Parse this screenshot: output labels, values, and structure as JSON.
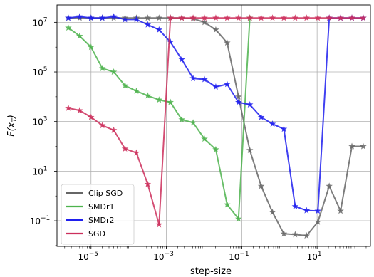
{
  "chart_data": {
    "type": "line",
    "xlabel": "step-size",
    "ylabel": "F(x_T)",
    "x_scale": "log",
    "y_scale": "log",
    "xlim": [
      1.25e-06,
      260
    ],
    "ylim": [
      0.0093,
      50000000
    ],
    "grid": true,
    "legend_position": "lower-left",
    "x_ticks": [
      {
        "value": 1e-05,
        "mantissa": "10",
        "exp": "−5"
      },
      {
        "value": 0.001,
        "mantissa": "10",
        "exp": "−3"
      },
      {
        "value": 0.1,
        "mantissa": "10",
        "exp": "−1"
      },
      {
        "value": 10,
        "mantissa": "10",
        "exp": "1"
      }
    ],
    "y_ticks": [
      {
        "value": 0.1,
        "mantissa": "10",
        "exp": "−1"
      },
      {
        "value": 10,
        "mantissa": "10",
        "exp": "1"
      },
      {
        "value": 1000,
        "mantissa": "10",
        "exp": "3"
      },
      {
        "value": 100000,
        "mantissa": "10",
        "exp": "5"
      },
      {
        "value": 10000000,
        "mantissa": "10",
        "exp": "7"
      }
    ],
    "series": [
      {
        "name": "Clip SGD",
        "color": "#666666",
        "marker": "star",
        "x": [
          2.5e-06,
          5e-06,
          1e-05,
          2e-05,
          4e-05,
          8e-05,
          0.00016,
          0.00032,
          0.00064,
          0.00128,
          0.00256,
          0.00512,
          0.01024,
          0.02048,
          0.04096,
          0.08192,
          0.16384,
          0.32768,
          0.65536,
          1.31,
          2.62,
          5.24,
          10.49,
          20.97,
          41.94,
          83.89,
          167.77
        ],
        "y": [
          15000000,
          15000000,
          15000000,
          15000000,
          15000000,
          15000000,
          15000000,
          15000000,
          15000000,
          15000000,
          15000000,
          14000000,
          10000000,
          5000000,
          1500000,
          10000,
          70,
          2.5,
          0.22,
          0.03,
          0.028,
          0.025,
          0.09,
          2.5,
          0.25,
          100,
          100
        ]
      },
      {
        "name": "SMDr1",
        "color": "#4db34d",
        "marker": "star",
        "x": [
          2.5e-06,
          5e-06,
          1e-05,
          2e-05,
          4e-05,
          8e-05,
          0.00016,
          0.00032,
          0.00064,
          0.00128,
          0.00256,
          0.00512,
          0.01024,
          0.02048,
          0.04096,
          0.08192,
          0.16384
        ],
        "y": [
          6000000,
          2800000,
          1000000,
          140000,
          100000,
          28000,
          17000,
          11000,
          7500,
          6000,
          1200,
          900,
          200,
          75,
          0.45,
          0.12,
          15000000
        ]
      },
      {
        "name": "SMDr2",
        "color": "#1f1fee",
        "marker": "star",
        "x": [
          2.5e-06,
          5e-06,
          1e-05,
          2e-05,
          4e-05,
          8e-05,
          0.00016,
          0.00032,
          0.00064,
          0.00128,
          0.00256,
          0.00512,
          0.01024,
          0.02048,
          0.04096,
          0.08192,
          0.16384,
          0.32768,
          0.65536,
          1.31,
          2.62,
          5.24,
          10.49,
          20.97,
          41.94,
          83.89,
          167.77
        ],
        "y": [
          15000000,
          17000000,
          15000000,
          15000000,
          17000000,
          13000000,
          13000000,
          8000000,
          5000000,
          1600000,
          320000,
          55000,
          50000,
          25000,
          32000,
          6000,
          4800,
          1500,
          800,
          500,
          0.38,
          0.26,
          0.25,
          15000000,
          15000000,
          15000000,
          15000000
        ]
      },
      {
        "name": "SGD",
        "color": "#cc2f5c",
        "marker": "star",
        "x": [
          2.5e-06,
          5e-06,
          1e-05,
          2e-05,
          4e-05,
          8e-05,
          0.00016,
          0.00032,
          0.00064,
          0.00128,
          0.00256,
          0.00512,
          0.01024,
          0.02048,
          0.04096,
          0.08192,
          0.16384,
          0.32768,
          0.65536,
          1.31,
          2.62,
          5.24,
          10.49,
          20.97,
          41.94,
          83.89,
          167.77
        ],
        "y": [
          3500,
          2800,
          1500,
          700,
          450,
          80,
          55,
          3,
          0.07,
          15000000,
          15000000,
          15000000,
          15000000,
          15000000,
          15000000,
          15000000,
          15000000,
          15000000,
          15000000,
          15000000,
          15000000,
          15000000,
          15000000,
          15000000,
          15000000,
          15000000,
          15000000
        ]
      }
    ]
  }
}
